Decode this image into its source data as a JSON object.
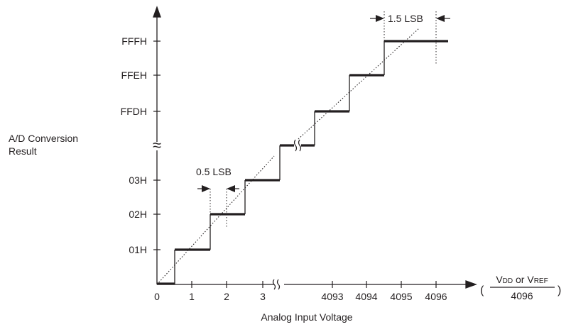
{
  "y_axis": {
    "title_line1": "A/D Conversion",
    "title_line2": "Result",
    "ticks_top": [
      "FFFH",
      "FFEH",
      "FFDH"
    ],
    "ticks_bottom": [
      "03H",
      "02H",
      "01H"
    ],
    "break_mark": "≈"
  },
  "x_axis": {
    "title": "Analog Input Voltage",
    "ticks_left": [
      "0",
      "1",
      "2",
      "3"
    ],
    "ticks_right": [
      "4093",
      "4094",
      "4095",
      "4096"
    ]
  },
  "unit": {
    "open_paren": "(",
    "close_paren": ")",
    "vdd_main": "V",
    "vdd_sub": "DD",
    "or_text": " or ",
    "vref_main": "V",
    "vref_sub": "REF",
    "denominator": "4096"
  },
  "annotations": {
    "half_lsb": "0.5 LSB",
    "one_half_lsb": "1.5 LSB"
  },
  "colors": {
    "ink": "#231f20"
  }
}
